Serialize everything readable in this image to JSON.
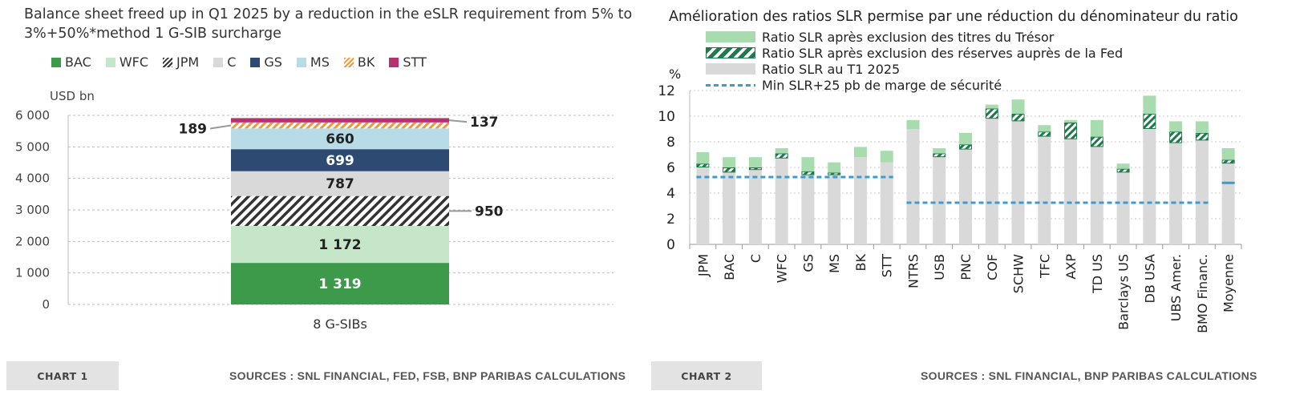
{
  "chart1": {
    "title": "Balance sheet freed up in Q1 2025 by a reduction in the eSLR requirement from 5% to 3%+50%*method 1 G-SIB surcharge",
    "ylabel": "USD bn",
    "footer_label": "CHART 1",
    "sources": "SOURCES : SNL FINANCIAL, FED, FSB, BNP PARIBAS CALCULATIONS",
    "legend": [
      {
        "name": "BAC",
        "color": "#3d9a4b",
        "pattern": "solid"
      },
      {
        "name": "WFC",
        "color": "#c5e6c8",
        "pattern": "solid"
      },
      {
        "name": "JPM",
        "color": "#333333",
        "pattern": "hatch"
      },
      {
        "name": "C",
        "color": "#d9d9d9",
        "pattern": "solid"
      },
      {
        "name": "GS",
        "color": "#2c4a72",
        "pattern": "solid"
      },
      {
        "name": "MS",
        "color": "#b7dce7",
        "pattern": "solid"
      },
      {
        "name": "BK",
        "color": "#f0973a",
        "pattern": "hatch"
      },
      {
        "name": "STT",
        "color": "#b5326f",
        "pattern": "solid"
      }
    ],
    "y_ticks": [
      "0",
      "1 000",
      "2 000",
      "3 000",
      "4 000",
      "5 000",
      "6 000"
    ]
  },
  "chart2": {
    "title": "Amélioration des ratios SLR permise par une réduction du dénominateur du ratio",
    "ylabel": "%",
    "footer_label": "CHART 2",
    "sources": "SOURCES : SNL FINANCIAL, BNP PARIBAS CALCULATIONS",
    "legend": [
      {
        "label": "Ratio SLR après exclusion des titres du Trésor",
        "color": "#a8dcae",
        "pattern": "solid"
      },
      {
        "label": "Ratio SLR après exclusion des réserves auprès de la Fed",
        "color": "#1e7a4c",
        "pattern": "hatch"
      },
      {
        "label": "Ratio SLR au T1 2025",
        "color": "#d9d9d9",
        "pattern": "solid"
      },
      {
        "label": "Min SLR+25 pb de marge de sécurité",
        "color": "#3b9bd0",
        "pattern": "dashed"
      }
    ],
    "y_ticks": [
      "0",
      "2",
      "4",
      "6",
      "8",
      "10",
      "12"
    ]
  },
  "chart_data": [
    {
      "type": "bar",
      "stacked": true,
      "title": "Balance sheet freed up in Q1 2025 by a reduction in the eSLR requirement from 5% to 3%+50%*method 1 G-SIB surcharge",
      "xlabel": "",
      "ylabel": "USD bn",
      "ylim": [
        0,
        6000
      ],
      "grid": true,
      "legend_position": "top",
      "categories": [
        "8 G-SIBs"
      ],
      "series": [
        {
          "name": "BAC",
          "values": [
            1319
          ],
          "label": "1 319"
        },
        {
          "name": "WFC",
          "values": [
            1172
          ],
          "label": "1 172"
        },
        {
          "name": "JPM",
          "values": [
            950
          ],
          "label": "950"
        },
        {
          "name": "C",
          "values": [
            787
          ],
          "label": "787"
        },
        {
          "name": "GS",
          "values": [
            699
          ],
          "label": "699"
        },
        {
          "name": "MS",
          "values": [
            660
          ],
          "label": "660"
        },
        {
          "name": "BK",
          "values": [
            189
          ],
          "label": "189"
        },
        {
          "name": "STT",
          "values": [
            137
          ],
          "label": "137"
        }
      ]
    },
    {
      "type": "bar",
      "stacked": true,
      "title": "Amélioration des ratios SLR permise par une réduction du dénominateur du ratio",
      "xlabel": "",
      "ylabel": "%",
      "ylim": [
        0,
        12
      ],
      "grid": true,
      "legend_position": "top",
      "categories": [
        "JPM",
        "BAC",
        "C",
        "WFC",
        "GS",
        "MS",
        "BK",
        "STT",
        "NTRS",
        "USB",
        "PNC",
        "COF",
        "SCHW",
        "TFC",
        "AXP",
        "TD US",
        "Barclays US",
        "DB USA",
        "UBS Amer.",
        "BMO Financ.",
        "Moyenne"
      ],
      "series": [
        {
          "name": "Ratio SLR au T1 2025",
          "values": [
            6.0,
            5.6,
            5.8,
            6.7,
            5.4,
            5.4,
            6.8,
            6.4,
            9.0,
            6.8,
            7.4,
            9.8,
            9.6,
            8.4,
            8.2,
            7.6,
            5.6,
            9.0,
            7.9,
            8.1,
            6.3
          ]
        },
        {
          "name": "Ratio SLR après exclusion des réserves auprès de la Fed",
          "values": [
            0.3,
            0.4,
            0.2,
            0.4,
            0.3,
            0.2,
            0.0,
            0.0,
            0.0,
            0.3,
            0.4,
            0.8,
            0.6,
            0.4,
            1.3,
            0.8,
            0.3,
            1.2,
            0.9,
            0.6,
            0.3
          ]
        },
        {
          "name": "Ratio SLR après exclusion des titres du Trésor",
          "values": [
            0.9,
            0.8,
            0.8,
            0.4,
            1.1,
            0.8,
            0.8,
            0.9,
            0.7,
            0.4,
            0.9,
            0.3,
            1.1,
            0.5,
            0.2,
            1.3,
            0.4,
            1.4,
            0.8,
            0.9,
            0.9
          ]
        }
      ],
      "threshold_line": {
        "name": "Min SLR+25 pb de marge de sécurité",
        "segments": [
          {
            "from": "JPM",
            "to": "STT",
            "value": 5.25
          },
          {
            "from": "NTRS",
            "to": "BMO Financ.",
            "value": 3.25
          },
          {
            "from": "Moyenne",
            "to": "Moyenne",
            "value": 4.8
          }
        ]
      }
    }
  ]
}
